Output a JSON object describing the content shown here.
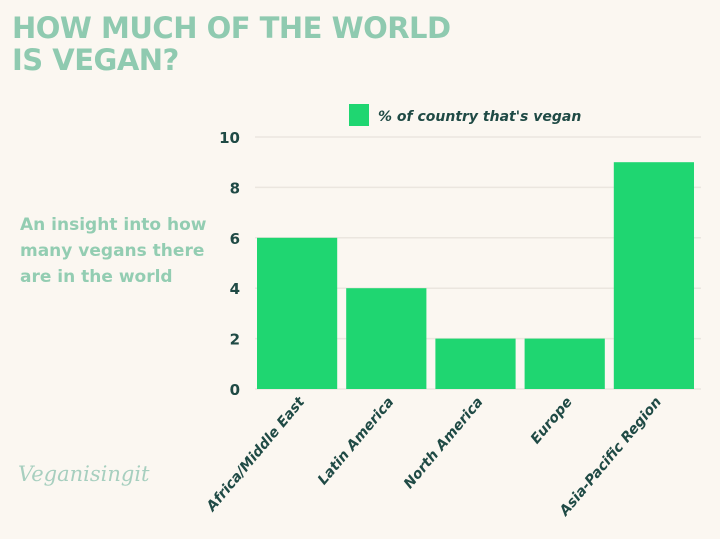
{
  "title_lines": [
    "HOW MUCH OF THE WORLD",
    "IS VEGAN?"
  ],
  "subtitle": "An insight into how many vegans there are in the world",
  "logo_text": "Veganisingit",
  "colors": {
    "bar": "#1fd671",
    "title": "#8fcab0",
    "label": "#1f4a45",
    "background": "#fbf7f1"
  },
  "chart_data": {
    "type": "bar",
    "title": "HOW MUCH OF THE WORLD IS VEGAN?",
    "categories": [
      "Africa/Middle East",
      "Latin America",
      "North America",
      "Europe",
      "Asia-Pacific Region"
    ],
    "series": [
      {
        "name": "% of country that's vegan",
        "values": [
          6,
          4,
          2,
          2,
          9
        ]
      }
    ],
    "ylim": [
      0,
      10
    ],
    "yticks": [
      0,
      2,
      4,
      6,
      8,
      10
    ],
    "grid": true,
    "legend": "top"
  }
}
